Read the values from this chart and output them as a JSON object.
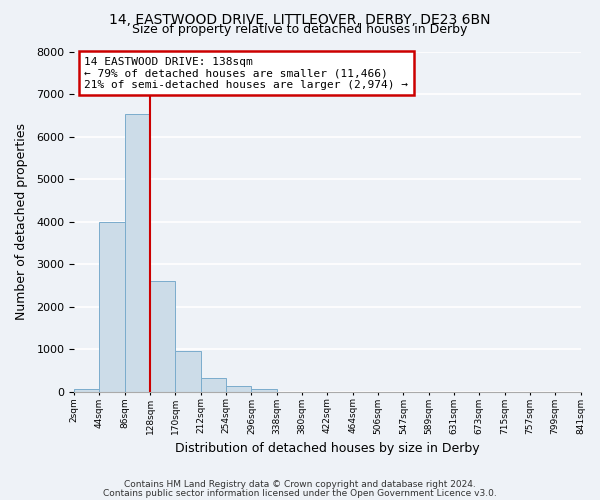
{
  "title1": "14, EASTWOOD DRIVE, LITTLEOVER, DERBY, DE23 6BN",
  "title2": "Size of property relative to detached houses in Derby",
  "xlabel": "Distribution of detached houses by size in Derby",
  "ylabel": "Number of detached properties",
  "bar_values": [
    60,
    3980,
    6540,
    2600,
    960,
    330,
    125,
    60,
    0,
    0,
    0,
    0,
    0,
    0,
    0,
    0,
    0,
    0,
    0,
    0
  ],
  "bin_labels": [
    "2sqm",
    "44sqm",
    "86sqm",
    "128sqm",
    "170sqm",
    "212sqm",
    "254sqm",
    "296sqm",
    "338sqm",
    "380sqm",
    "422sqm",
    "464sqm",
    "506sqm",
    "547sqm",
    "589sqm",
    "631sqm",
    "673sqm",
    "715sqm",
    "757sqm",
    "799sqm",
    "841sqm"
  ],
  "bar_color": "#ccdce8",
  "bar_edge_color": "#7aaccc",
  "property_line_x": 3,
  "property_line_color": "#cc0000",
  "annotation_line1": "14 EASTWOOD DRIVE: 138sqm",
  "annotation_line2": "← 79% of detached houses are smaller (11,466)",
  "annotation_line3": "21% of semi-detached houses are larger (2,974) →",
  "annotation_box_color": "#ffffff",
  "annotation_box_edge": "#cc0000",
  "ylim": [
    0,
    8000
  ],
  "yticks": [
    0,
    1000,
    2000,
    3000,
    4000,
    5000,
    6000,
    7000,
    8000
  ],
  "footer1": "Contains HM Land Registry data © Crown copyright and database right 2024.",
  "footer2": "Contains public sector information licensed under the Open Government Licence v3.0.",
  "bg_color": "#eef2f7",
  "grid_color": "#ffffff"
}
